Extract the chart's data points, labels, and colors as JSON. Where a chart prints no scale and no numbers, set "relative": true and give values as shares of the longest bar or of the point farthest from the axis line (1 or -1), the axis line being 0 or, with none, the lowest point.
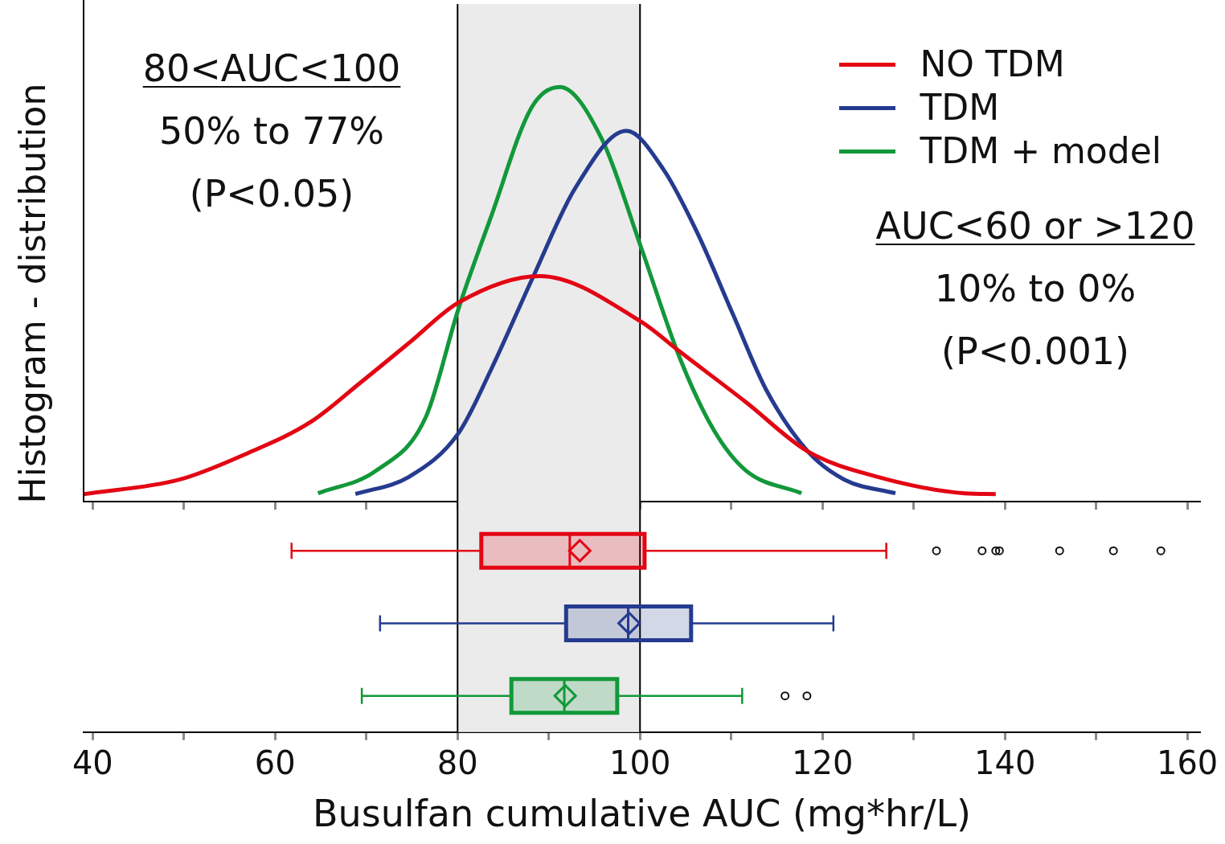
{
  "chart_data": [
    {
      "type": "line",
      "relative": true,
      "ylabel": "Histogram - distribution",
      "legend": "top right",
      "marker": "none",
      "tick_labels": false,
      "xlim": [
        39,
        161.4
      ],
      "xticks": [
        40,
        {
          "value": 50,
          "label": null
        },
        60,
        {
          "value": 70,
          "label": null
        },
        80,
        {
          "value": 90,
          "label": null
        },
        100,
        {
          "value": 110,
          "label": null
        },
        120,
        {
          "value": 130,
          "label": null
        },
        140,
        {
          "value": 150,
          "label": null
        },
        160
      ],
      "bands": [
        {
          "axis": "x",
          "from": 80,
          "to": 100,
          "color": "#ebebeb"
        }
      ],
      "annotations": [
        "80<AUC<100",
        "50% to 77%",
        "(P<0.05)",
        "AUC<60 or >120",
        "10% to 0%",
        "(P<0.001)"
      ],
      "series": [
        {
          "name": "NO TDM",
          "color": "#e30613",
          "x": [
            39.0,
            49.5,
            56.7,
            63.9,
            69.3,
            74.7,
            80.1,
            89.0,
            100.1,
            104.4,
            111.6,
            118.4,
            126.0,
            135.6,
            139.0
          ],
          "values": [
            0.018,
            0.053,
            0.114,
            0.192,
            0.286,
            0.383,
            0.48,
            0.544,
            0.434,
            0.361,
            0.24,
            0.121,
            0.06,
            0.02,
            0.018
          ]
        },
        {
          "name": "TDM",
          "color": "#253b8f",
          "x": [
            68.8,
            74.7,
            80.1,
            83.6,
            88.2,
            92.9,
            98.5,
            102.6,
            106.2,
            110.2,
            113.8,
            118.4,
            122.4,
            128.0
          ],
          "values": [
            0.018,
            0.06,
            0.165,
            0.315,
            0.538,
            0.756,
            0.894,
            0.8,
            0.652,
            0.451,
            0.271,
            0.121,
            0.053,
            0.02
          ]
        },
        {
          "name": "TDM + model",
          "color": "#12983a",
          "x": [
            64.7,
            71.1,
            76.5,
            80.1,
            83.7,
            88.1,
            91.2,
            95.8,
            100.1,
            104.4,
            108.1,
            111.6,
            117.7
          ],
          "values": [
            0.02,
            0.075,
            0.203,
            0.465,
            0.689,
            0.95,
            1,
            0.875,
            0.614,
            0.344,
            0.172,
            0.075,
            0.02
          ]
        }
      ]
    },
    {
      "type": "box",
      "orientation": "horizontal",
      "tick_labels": "x",
      "xlabel": "Busulfan cumulative AUC (mg*hr/L)",
      "xlim": [
        39,
        161.4
      ],
      "xticks": [
        40,
        {
          "value": 50,
          "label": null
        },
        60,
        {
          "value": 70,
          "label": null
        },
        80,
        {
          "value": 90,
          "label": null
        },
        100,
        {
          "value": 110,
          "label": null
        },
        120,
        {
          "value": 130,
          "label": null
        },
        140,
        {
          "value": 150,
          "label": null
        },
        160
      ],
      "bands": [
        {
          "axis": "x",
          "from": 80,
          "to": 100,
          "color": "#ebebeb"
        }
      ],
      "categories": [
        null,
        null,
        null
      ],
      "colors": [
        "#e30613",
        "#253b8f",
        "#12983a"
      ],
      "boxes": [
        {
          "low": 61.8,
          "q1": 82.6,
          "median": 92.3,
          "q3": 100.5,
          "high": 127.0,
          "mean": 93.4,
          "outliers": [
            132.5,
            137.5,
            139.0,
            139.4,
            146.0,
            151.9,
            157.1
          ]
        },
        {
          "low": 71.5,
          "q1": 91.9,
          "median": 98.7,
          "q3": 105.6,
          "high": 121.2,
          "mean": 98.8
        },
        {
          "low": 69.5,
          "q1": 85.9,
          "median": 91.7,
          "q3": 97.5,
          "high": 111.2,
          "mean": 91.8,
          "outliers": [
            115.9,
            118.3
          ]
        }
      ]
    }
  ]
}
